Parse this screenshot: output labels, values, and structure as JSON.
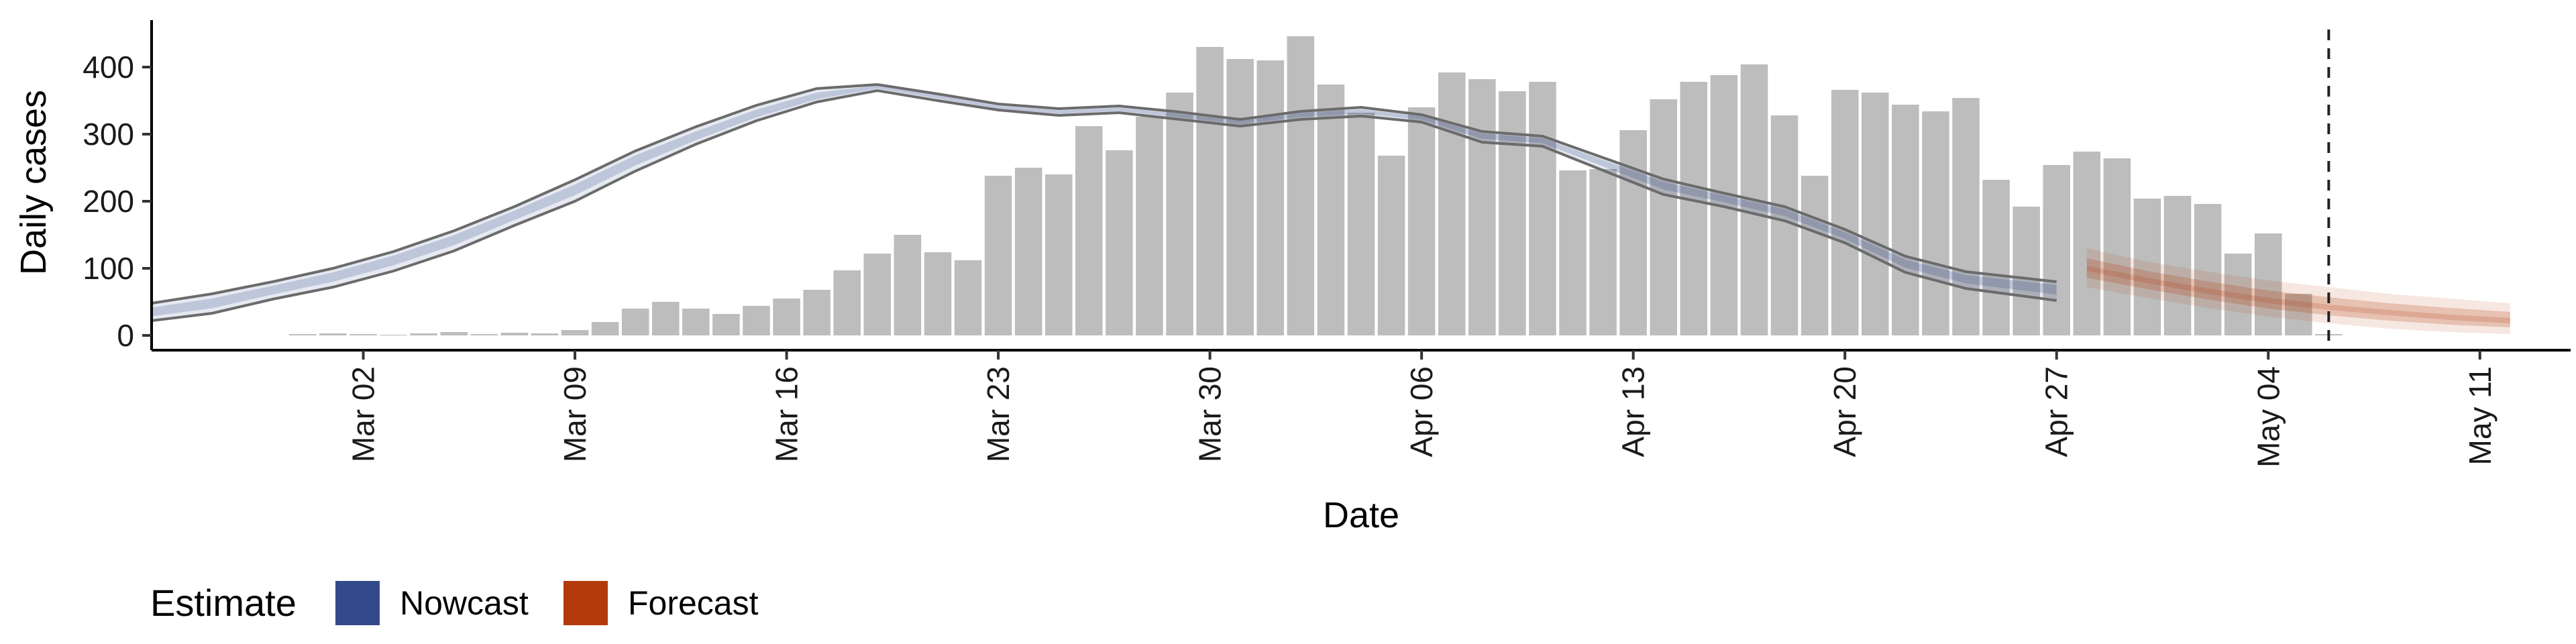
{
  "chart_data": {
    "type": "bar",
    "xlabel": "Date",
    "ylabel": "Daily cases",
    "ylim": [
      0,
      470
    ],
    "yticks": [
      0,
      100,
      200,
      300,
      400
    ],
    "xlim": [
      "2020-02-24",
      "2020-05-14"
    ],
    "xticks": [
      {
        "date": "2020-03-02",
        "label": "Mar 02"
      },
      {
        "date": "2020-03-09",
        "label": "Mar 09"
      },
      {
        "date": "2020-03-16",
        "label": "Mar 16"
      },
      {
        "date": "2020-03-23",
        "label": "Mar 23"
      },
      {
        "date": "2020-03-30",
        "label": "Mar 30"
      },
      {
        "date": "2020-04-06",
        "label": "Apr 06"
      },
      {
        "date": "2020-04-13",
        "label": "Apr 13"
      },
      {
        "date": "2020-04-20",
        "label": "Apr 20"
      },
      {
        "date": "2020-04-27",
        "label": "Apr 27"
      },
      {
        "date": "2020-05-04",
        "label": "May 04"
      },
      {
        "date": "2020-05-11",
        "label": "May 11"
      }
    ],
    "grid": false,
    "legend": {
      "position": "bottom-left",
      "title": "Estimate",
      "entries": [
        {
          "label": "Nowcast",
          "color": "#34498a"
        },
        {
          "label": "Forecast",
          "color": "#b33a0b"
        }
      ]
    },
    "vline_date": "2020-05-06",
    "bars": {
      "color": "#bdbdbd",
      "dates": [
        "2020-02-29",
        "2020-03-01",
        "2020-03-02",
        "2020-03-03",
        "2020-03-04",
        "2020-03-05",
        "2020-03-06",
        "2020-03-07",
        "2020-03-08",
        "2020-03-09",
        "2020-03-10",
        "2020-03-11",
        "2020-03-12",
        "2020-03-13",
        "2020-03-14",
        "2020-03-15",
        "2020-03-16",
        "2020-03-17",
        "2020-03-18",
        "2020-03-19",
        "2020-03-20",
        "2020-03-21",
        "2020-03-22",
        "2020-03-23",
        "2020-03-24",
        "2020-03-25",
        "2020-03-26",
        "2020-03-27",
        "2020-03-28",
        "2020-03-29",
        "2020-03-30",
        "2020-03-31",
        "2020-04-01",
        "2020-04-02",
        "2020-04-03",
        "2020-04-04",
        "2020-04-05",
        "2020-04-06",
        "2020-04-07",
        "2020-04-08",
        "2020-04-09",
        "2020-04-10",
        "2020-04-11",
        "2020-04-12",
        "2020-04-13",
        "2020-04-14",
        "2020-04-15",
        "2020-04-16",
        "2020-04-17",
        "2020-04-18",
        "2020-04-19",
        "2020-04-20",
        "2020-04-21",
        "2020-04-22",
        "2020-04-23",
        "2020-04-24",
        "2020-04-25",
        "2020-04-26",
        "2020-04-27",
        "2020-04-28",
        "2020-04-29",
        "2020-04-30",
        "2020-05-01",
        "2020-05-02",
        "2020-05-03",
        "2020-05-04",
        "2020-05-05",
        "2020-05-06"
      ],
      "values": [
        2,
        3,
        2,
        1,
        3,
        5,
        2,
        4,
        3,
        8,
        20,
        40,
        50,
        40,
        32,
        44,
        55,
        68,
        97,
        122,
        150,
        124,
        112,
        238,
        250,
        240,
        312,
        276,
        326,
        362,
        430,
        412,
        410,
        446,
        374,
        332,
        268,
        340,
        392,
        382,
        364,
        378,
        246,
        248,
        306,
        352,
        378,
        388,
        404,
        328,
        238,
        366,
        362,
        344,
        334,
        354,
        232,
        192,
        254,
        274,
        264,
        204,
        208,
        196,
        122,
        152,
        62,
        2
      ]
    },
    "series": [
      {
        "name": "Nowcast",
        "color": "#34498a",
        "dates": [
          "2020-02-24",
          "2020-02-26",
          "2020-02-28",
          "2020-03-01",
          "2020-03-03",
          "2020-03-05",
          "2020-03-07",
          "2020-03-09",
          "2020-03-11",
          "2020-03-13",
          "2020-03-15",
          "2020-03-17",
          "2020-03-19",
          "2020-03-21",
          "2020-03-23",
          "2020-03-25",
          "2020-03-27",
          "2020-03-29",
          "2020-03-31",
          "2020-04-02",
          "2020-04-04",
          "2020-04-06",
          "2020-04-08",
          "2020-04-10",
          "2020-04-12",
          "2020-04-14",
          "2020-04-16",
          "2020-04-18",
          "2020-04-20",
          "2020-04-22",
          "2020-04-24",
          "2020-04-27"
        ],
        "upper": [
          48,
          62,
          80,
          100,
          125,
          156,
          192,
          232,
          275,
          311,
          343,
          368,
          374,
          360,
          345,
          338,
          342,
          333,
          322,
          334,
          340,
          329,
          304,
          297,
          265,
          233,
          212,
          192,
          158,
          118,
          95,
          80
        ],
        "median": [
          35,
          48,
          68,
          88,
          113,
          143,
          180,
          218,
          262,
          297,
          330,
          356,
          371,
          356,
          340,
          333,
          337,
          328,
          318,
          329,
          334,
          325,
          298,
          291,
          258,
          225,
          205,
          185,
          150,
          108,
          85,
          70
        ],
        "lower": [
          22,
          33,
          54,
          72,
          96,
          126,
          164,
          200,
          245,
          285,
          320,
          348,
          365,
          350,
          336,
          328,
          332,
          322,
          312,
          322,
          327,
          318,
          288,
          282,
          246,
          210,
          192,
          171,
          138,
          94,
          70,
          52
        ]
      },
      {
        "name": "Forecast",
        "color": "#b33a0b",
        "dates": [
          "2020-04-28",
          "2020-04-30",
          "2020-05-02",
          "2020-05-04",
          "2020-05-06",
          "2020-05-08",
          "2020-05-10",
          "2020-05-12"
        ],
        "upper": [
          130,
          110,
          95,
          82,
          72,
          62,
          55,
          48
        ],
        "median": [
          100,
          82,
          66,
          52,
          42,
          34,
          27,
          22
        ],
        "lower": [
          72,
          56,
          41,
          28,
          18,
          10,
          5,
          2
        ]
      }
    ]
  }
}
